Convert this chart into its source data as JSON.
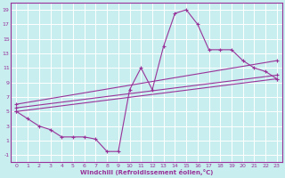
{
  "xlabel": "Windchill (Refroidissement éolien,°C)",
  "xlim": [
    0,
    23
  ],
  "ylim": [
    -1,
    19
  ],
  "xticks": [
    0,
    1,
    2,
    3,
    4,
    5,
    6,
    7,
    8,
    9,
    10,
    11,
    12,
    13,
    14,
    15,
    16,
    17,
    18,
    19,
    20,
    21,
    22,
    23
  ],
  "yticks": [
    -1,
    1,
    3,
    5,
    7,
    9,
    11,
    13,
    15,
    17,
    19
  ],
  "bg_color": "#c8eef0",
  "line_color": "#993399",
  "grid_color": "#ffffff",
  "lines": [
    {
      "x": [
        0,
        1,
        2,
        3,
        4,
        5,
        6,
        7,
        8,
        9,
        10,
        11,
        12,
        13,
        14,
        15,
        16,
        17,
        18,
        19,
        20,
        21,
        22,
        23
      ],
      "y": [
        5,
        4,
        3,
        2.5,
        1.5,
        1.5,
        1.5,
        1.2,
        -0.5,
        -0.5,
        8,
        11,
        8,
        14,
        18.5,
        19,
        17,
        13.5,
        13.5,
        13.5,
        12,
        11,
        10.5,
        9.5
      ]
    },
    {
      "x": [
        0,
        23
      ],
      "y": [
        5,
        9.5
      ]
    },
    {
      "x": [
        0,
        23
      ],
      "y": [
        5.5,
        10
      ]
    },
    {
      "x": [
        0,
        23
      ],
      "y": [
        6,
        12
      ]
    }
  ]
}
